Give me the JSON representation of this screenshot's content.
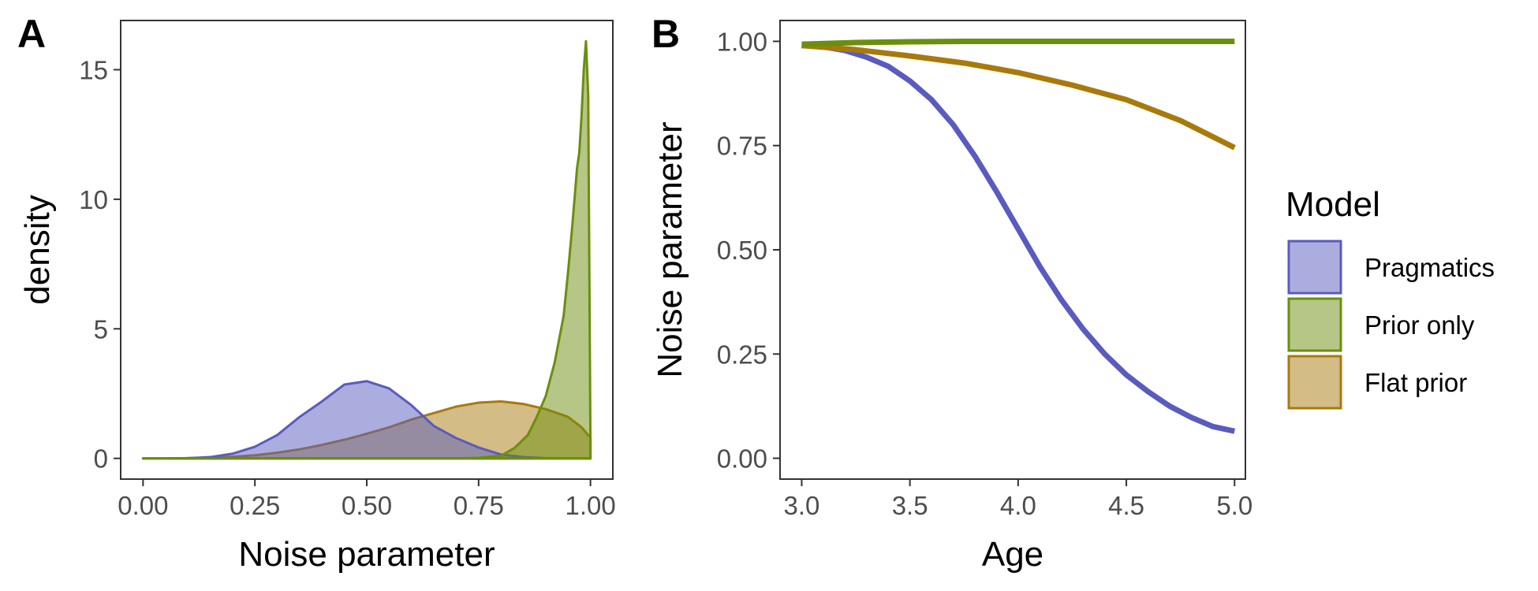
{
  "colors": {
    "Pragmatics": "#5a5bbf",
    "Prior only": "#6b8e0e",
    "Flat prior": "#a87a0c",
    "axis": "#333333",
    "tick_text": "#4d4d4d"
  },
  "legend": {
    "title": "Model",
    "entries": [
      "Pragmatics",
      "Prior only",
      "Flat prior"
    ]
  },
  "chart_data": [
    {
      "panel": "A",
      "type": "area",
      "xlabel": "Noise parameter",
      "ylabel": "density",
      "xlim": [
        -0.05,
        1.05
      ],
      "ylim": [
        -0.8,
        16.9
      ],
      "xticks": [
        0,
        0.25,
        0.5,
        0.75,
        1
      ],
      "xtick_labels": [
        "0.00",
        "0.25",
        "0.50",
        "0.75",
        "1.00"
      ],
      "yticks": [
        0,
        5,
        10,
        15
      ],
      "ytick_labels": [
        "0",
        "5",
        "10",
        "15"
      ],
      "grid": false,
      "series": [
        {
          "name": "Flat prior",
          "x": [
            0,
            0.05,
            0.1,
            0.15,
            0.2,
            0.25,
            0.3,
            0.35,
            0.4,
            0.45,
            0.5,
            0.55,
            0.6,
            0.65,
            0.7,
            0.75,
            0.8,
            0.85,
            0.9,
            0.95,
            0.98,
            1.0
          ],
          "y": [
            0,
            0,
            0.01,
            0.03,
            0.06,
            0.12,
            0.22,
            0.35,
            0.52,
            0.72,
            0.95,
            1.2,
            1.5,
            1.75,
            2.0,
            2.15,
            2.2,
            2.1,
            1.9,
            1.6,
            1.2,
            0.8
          ]
        },
        {
          "name": "Pragmatics",
          "x": [
            0,
            0.05,
            0.1,
            0.15,
            0.2,
            0.25,
            0.3,
            0.35,
            0.4,
            0.45,
            0.5,
            0.55,
            0.6,
            0.65,
            0.7,
            0.75,
            0.8,
            0.85,
            0.9,
            0.95,
            1.0
          ],
          "y": [
            0,
            0,
            0.01,
            0.05,
            0.18,
            0.45,
            0.9,
            1.6,
            2.2,
            2.85,
            2.98,
            2.7,
            2.05,
            1.25,
            0.78,
            0.42,
            0.15,
            0.05,
            0.01,
            0,
            0
          ]
        },
        {
          "name": "Prior only",
          "x": [
            0,
            0.1,
            0.2,
            0.3,
            0.4,
            0.5,
            0.6,
            0.7,
            0.75,
            0.8,
            0.83,
            0.86,
            0.88,
            0.9,
            0.92,
            0.94,
            0.95,
            0.96,
            0.97,
            0.975,
            0.98,
            0.985,
            0.99,
            0.995,
            1.0
          ],
          "y": [
            0,
            0,
            0,
            0,
            0,
            0,
            0,
            0,
            0.02,
            0.1,
            0.4,
            0.9,
            1.6,
            2.4,
            3.7,
            5.5,
            7.2,
            9.1,
            11.2,
            11.8,
            13.2,
            15.0,
            16.1,
            14.0,
            0.5
          ]
        }
      ]
    },
    {
      "panel": "B",
      "type": "line",
      "xlabel": "Age",
      "ylabel": "Noise parameter",
      "xlim": [
        2.9,
        5.05
      ],
      "ylim": [
        -0.05,
        1.05
      ],
      "xticks": [
        3,
        3.5,
        4,
        4.5,
        5
      ],
      "xtick_labels": [
        "3.0",
        "3.5",
        "4.0",
        "4.5",
        "5.0"
      ],
      "yticks": [
        0,
        0.25,
        0.5,
        0.75,
        1
      ],
      "ytick_labels": [
        "0.00",
        "0.25",
        "0.50",
        "0.75",
        "1.00"
      ],
      "grid": false,
      "series": [
        {
          "name": "Pragmatics",
          "x": [
            3.0,
            3.1,
            3.2,
            3.3,
            3.4,
            3.5,
            3.6,
            3.7,
            3.8,
            3.9,
            4.0,
            4.1,
            4.2,
            4.3,
            4.4,
            4.5,
            4.6,
            4.7,
            4.8,
            4.9,
            5.0
          ],
          "y": [
            0.99,
            0.987,
            0.978,
            0.962,
            0.94,
            0.905,
            0.86,
            0.8,
            0.725,
            0.64,
            0.55,
            0.46,
            0.38,
            0.31,
            0.25,
            0.2,
            0.16,
            0.125,
            0.098,
            0.076,
            0.065
          ]
        },
        {
          "name": "Flat prior",
          "x": [
            3.0,
            3.25,
            3.5,
            3.75,
            4.0,
            4.25,
            4.5,
            4.75,
            5.0
          ],
          "y": [
            0.99,
            0.98,
            0.965,
            0.948,
            0.925,
            0.895,
            0.86,
            0.81,
            0.745
          ]
        },
        {
          "name": "Prior only",
          "x": [
            3.0,
            3.25,
            3.5,
            3.75,
            4.0,
            4.5,
            5.0
          ],
          "y": [
            0.993,
            0.997,
            0.999,
            1.0,
            1.0,
            1.0,
            1.0
          ]
        }
      ]
    }
  ]
}
